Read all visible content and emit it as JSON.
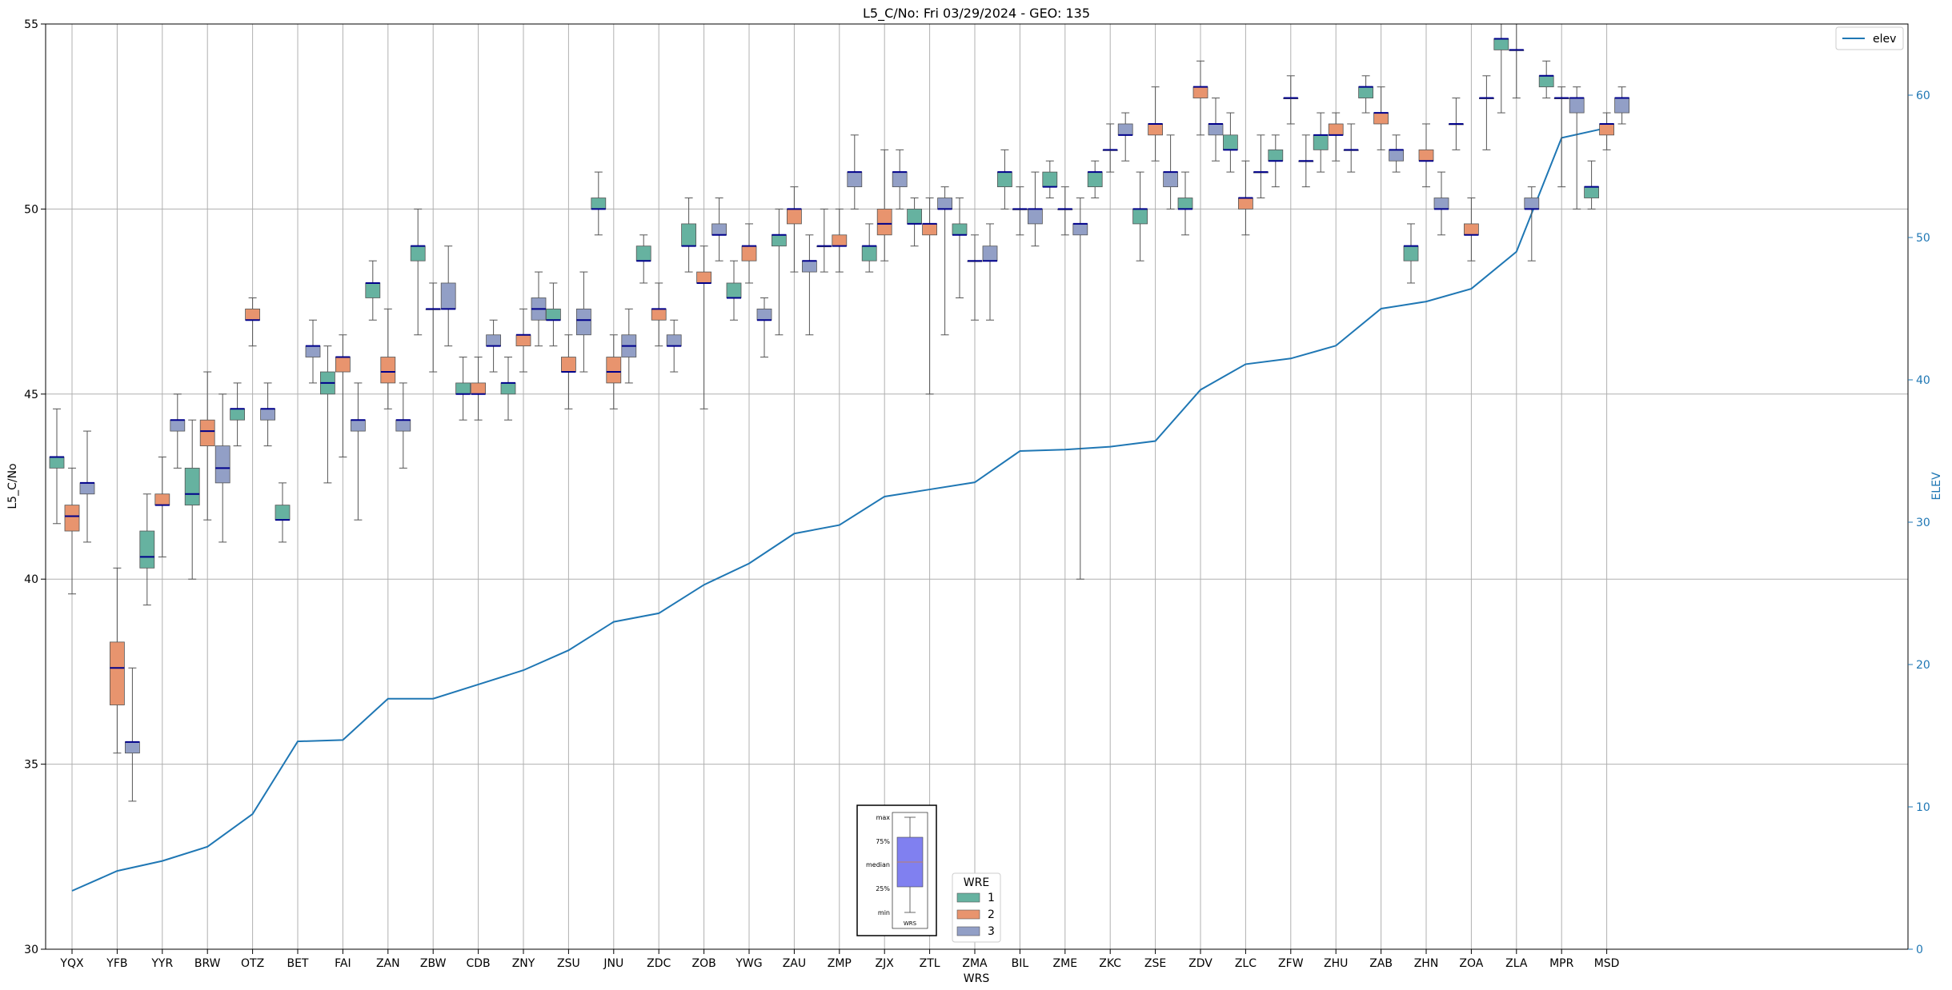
{
  "chart_data": {
    "type": "box",
    "title": "L5_C/No: Fri 03/29/2024 - GEO: 135",
    "xlabel": "WRS",
    "ylabel": "L5_C/No",
    "y2label": "ELEV",
    "ylim": [
      30,
      55
    ],
    "y2lim": [
      0,
      65
    ],
    "yticks": [
      30,
      35,
      40,
      45,
      50,
      55
    ],
    "y2ticks": [
      0,
      10,
      20,
      30,
      40,
      50,
      60
    ],
    "grid": true,
    "categories": [
      "YQX",
      "YFB",
      "YYR",
      "BRW",
      "OTZ",
      "BET",
      "FAI",
      "ZAN",
      "ZBW",
      "CDB",
      "ZNY",
      "ZSU",
      "JNU",
      "ZDC",
      "ZOB",
      "YWG",
      "ZAU",
      "ZMP",
      "ZJX",
      "ZTL",
      "ZMA",
      "BIL",
      "ZME",
      "ZKC",
      "ZSE",
      "ZDV",
      "ZLC",
      "ZFW",
      "ZHU",
      "ZAB",
      "ZHN",
      "ZOA",
      "ZLA",
      "MPR",
      "MSD"
    ],
    "line_series": {
      "name": "elev",
      "color": "#1f77b4",
      "legend_position": "top-right",
      "values": [
        4.1,
        5.5,
        6.2,
        7.2,
        9.5,
        14.6,
        14.7,
        17.6,
        17.6,
        18.6,
        19.6,
        21.0,
        23.0,
        23.6,
        25.6,
        27.1,
        29.2,
        29.8,
        31.8,
        32.3,
        32.8,
        35.0,
        35.1,
        35.3,
        35.7,
        39.3,
        41.1,
        41.5,
        42.4,
        45.0,
        45.5,
        46.4,
        49.0,
        57.0,
        57.7
      ]
    },
    "wre_legend": {
      "title": "WRE",
      "entries": [
        {
          "label": "1",
          "color": "#66b2a0"
        },
        {
          "label": "2",
          "color": "#e8946e"
        },
        {
          "label": "3",
          "color": "#929fc6"
        }
      ]
    },
    "boxes": [
      {
        "cat": "YQX",
        "wre": 1,
        "min": 41.5,
        "q1": 43.0,
        "median": 43.3,
        "q3": 43.3,
        "max": 44.6
      },
      {
        "cat": "YQX",
        "wre": 2,
        "min": 39.6,
        "q1": 41.3,
        "median": 41.7,
        "q3": 42.0,
        "max": 43.0
      },
      {
        "cat": "YQX",
        "wre": 3,
        "min": 41.0,
        "q1": 42.3,
        "median": 42.6,
        "q3": 42.6,
        "max": 44.0
      },
      {
        "cat": "YFB",
        "wre": 2,
        "min": 35.3,
        "q1": 36.6,
        "median": 37.6,
        "q3": 38.3,
        "max": 40.3
      },
      {
        "cat": "YFB",
        "wre": 3,
        "min": 34.0,
        "q1": 35.3,
        "median": 35.6,
        "q3": 35.6,
        "max": 37.6
      },
      {
        "cat": "YYR",
        "wre": 1,
        "min": 39.3,
        "q1": 40.3,
        "median": 40.6,
        "q3": 41.3,
        "max": 42.3
      },
      {
        "cat": "YYR",
        "wre": 2,
        "min": 40.6,
        "q1": 42.0,
        "median": 42.0,
        "q3": 42.3,
        "max": 43.3
      },
      {
        "cat": "YYR",
        "wre": 3,
        "min": 43.0,
        "q1": 44.0,
        "median": 44.3,
        "q3": 44.3,
        "max": 45.0
      },
      {
        "cat": "BRW",
        "wre": 1,
        "min": 40.0,
        "q1": 42.0,
        "median": 42.3,
        "q3": 43.0,
        "max": 44.3
      },
      {
        "cat": "BRW",
        "wre": 2,
        "min": 41.6,
        "q1": 43.6,
        "median": 44.0,
        "q3": 44.3,
        "max": 45.6
      },
      {
        "cat": "BRW",
        "wre": 3,
        "min": 41.0,
        "q1": 42.6,
        "median": 43.0,
        "q3": 43.6,
        "max": 45.0
      },
      {
        "cat": "OTZ",
        "wre": 1,
        "min": 43.6,
        "q1": 44.3,
        "median": 44.6,
        "q3": 44.6,
        "max": 45.3
      },
      {
        "cat": "OTZ",
        "wre": 2,
        "min": 46.3,
        "q1": 47.0,
        "median": 47.0,
        "q3": 47.3,
        "max": 47.6
      },
      {
        "cat": "OTZ",
        "wre": 3,
        "min": 43.6,
        "q1": 44.3,
        "median": 44.6,
        "q3": 44.6,
        "max": 45.3
      },
      {
        "cat": "BET",
        "wre": 1,
        "min": 41.0,
        "q1": 41.6,
        "median": 41.6,
        "q3": 42.0,
        "max": 42.6
      },
      {
        "cat": "BET",
        "wre": 3,
        "min": 45.3,
        "q1": 46.0,
        "median": 46.3,
        "q3": 46.3,
        "max": 47.0
      },
      {
        "cat": "FAI",
        "wre": 1,
        "min": 42.6,
        "q1": 45.0,
        "median": 45.3,
        "q3": 45.6,
        "max": 46.3
      },
      {
        "cat": "FAI",
        "wre": 2,
        "min": 43.3,
        "q1": 45.6,
        "median": 46.0,
        "q3": 46.0,
        "max": 46.6
      },
      {
        "cat": "FAI",
        "wre": 3,
        "min": 41.6,
        "q1": 44.0,
        "median": 44.3,
        "q3": 44.3,
        "max": 45.3
      },
      {
        "cat": "ZAN",
        "wre": 1,
        "min": 47.0,
        "q1": 47.6,
        "median": 48.0,
        "q3": 48.0,
        "max": 48.6
      },
      {
        "cat": "ZAN",
        "wre": 2,
        "min": 44.6,
        "q1": 45.3,
        "median": 45.6,
        "q3": 46.0,
        "max": 47.3
      },
      {
        "cat": "ZAN",
        "wre": 3,
        "min": 43.0,
        "q1": 44.0,
        "median": 44.3,
        "q3": 44.3,
        "max": 45.3
      },
      {
        "cat": "ZBW",
        "wre": 1,
        "min": 46.6,
        "q1": 48.6,
        "median": 49.0,
        "q3": 49.0,
        "max": 50.0
      },
      {
        "cat": "ZBW",
        "wre": 2,
        "min": 45.6,
        "q1": 47.3,
        "median": 47.3,
        "q3": 47.3,
        "max": 48.0
      },
      {
        "cat": "ZBW",
        "wre": 3,
        "min": 46.3,
        "q1": 47.3,
        "median": 47.3,
        "q3": 48.0,
        "max": 49.0
      },
      {
        "cat": "CDB",
        "wre": 1,
        "min": 44.3,
        "q1": 45.0,
        "median": 45.0,
        "q3": 45.3,
        "max": 46.0
      },
      {
        "cat": "CDB",
        "wre": 2,
        "min": 44.3,
        "q1": 45.0,
        "median": 45.0,
        "q3": 45.3,
        "max": 46.0
      },
      {
        "cat": "CDB",
        "wre": 3,
        "min": 45.6,
        "q1": 46.3,
        "median": 46.3,
        "q3": 46.6,
        "max": 47.0
      },
      {
        "cat": "ZNY",
        "wre": 1,
        "min": 44.3,
        "q1": 45.0,
        "median": 45.3,
        "q3": 45.3,
        "max": 46.0
      },
      {
        "cat": "ZNY",
        "wre": 2,
        "min": 45.6,
        "q1": 46.3,
        "median": 46.6,
        "q3": 46.6,
        "max": 47.3
      },
      {
        "cat": "ZNY",
        "wre": 3,
        "min": 46.3,
        "q1": 47.0,
        "median": 47.3,
        "q3": 47.6,
        "max": 48.3
      },
      {
        "cat": "ZSU",
        "wre": 1,
        "min": 46.3,
        "q1": 47.0,
        "median": 47.0,
        "q3": 47.3,
        "max": 48.0
      },
      {
        "cat": "ZSU",
        "wre": 2,
        "min": 44.6,
        "q1": 45.6,
        "median": 45.6,
        "q3": 46.0,
        "max": 46.6
      },
      {
        "cat": "ZSU",
        "wre": 3,
        "min": 45.6,
        "q1": 46.6,
        "median": 47.0,
        "q3": 47.3,
        "max": 48.3
      },
      {
        "cat": "JNU",
        "wre": 1,
        "min": 49.3,
        "q1": 50.0,
        "median": 50.0,
        "q3": 50.3,
        "max": 51.0
      },
      {
        "cat": "JNU",
        "wre": 2,
        "min": 44.6,
        "q1": 45.3,
        "median": 45.6,
        "q3": 46.0,
        "max": 46.6
      },
      {
        "cat": "JNU",
        "wre": 3,
        "min": 45.3,
        "q1": 46.0,
        "median": 46.3,
        "q3": 46.6,
        "max": 47.3
      },
      {
        "cat": "ZDC",
        "wre": 1,
        "min": 48.0,
        "q1": 48.6,
        "median": 48.6,
        "q3": 49.0,
        "max": 49.3
      },
      {
        "cat": "ZDC",
        "wre": 2,
        "min": 46.3,
        "q1": 47.0,
        "median": 47.3,
        "q3": 47.3,
        "max": 48.0
      },
      {
        "cat": "ZDC",
        "wre": 3,
        "min": 45.6,
        "q1": 46.3,
        "median": 46.3,
        "q3": 46.6,
        "max": 47.0
      },
      {
        "cat": "ZOB",
        "wre": 1,
        "min": 48.3,
        "q1": 49.0,
        "median": 49.0,
        "q3": 49.6,
        "max": 50.3
      },
      {
        "cat": "ZOB",
        "wre": 2,
        "min": 44.6,
        "q1": 48.0,
        "median": 48.0,
        "q3": 48.3,
        "max": 49.0
      },
      {
        "cat": "ZOB",
        "wre": 3,
        "min": 48.6,
        "q1": 49.3,
        "median": 49.3,
        "q3": 49.6,
        "max": 50.3
      },
      {
        "cat": "YWG",
        "wre": 1,
        "min": 47.0,
        "q1": 47.6,
        "median": 47.6,
        "q3": 48.0,
        "max": 48.6
      },
      {
        "cat": "YWG",
        "wre": 2,
        "min": 48.0,
        "q1": 48.6,
        "median": 49.0,
        "q3": 49.0,
        "max": 49.6
      },
      {
        "cat": "YWG",
        "wre": 3,
        "min": 46.0,
        "q1": 47.0,
        "median": 47.0,
        "q3": 47.3,
        "max": 47.6
      },
      {
        "cat": "ZAU",
        "wre": 1,
        "min": 46.6,
        "q1": 49.0,
        "median": 49.3,
        "q3": 49.3,
        "max": 50.0
      },
      {
        "cat": "ZAU",
        "wre": 2,
        "min": 48.3,
        "q1": 49.6,
        "median": 50.0,
        "q3": 50.0,
        "max": 50.6
      },
      {
        "cat": "ZAU",
        "wre": 3,
        "min": 46.6,
        "q1": 48.3,
        "median": 48.6,
        "q3": 48.6,
        "max": 49.3
      },
      {
        "cat": "ZMP",
        "wre": 1,
        "min": 48.3,
        "q1": 49.0,
        "median": 49.0,
        "q3": 49.0,
        "max": 50.0
      },
      {
        "cat": "ZMP",
        "wre": 2,
        "min": 48.3,
        "q1": 49.0,
        "median": 49.0,
        "q3": 49.3,
        "max": 50.0
      },
      {
        "cat": "ZMP",
        "wre": 3,
        "min": 50.0,
        "q1": 50.6,
        "median": 51.0,
        "q3": 51.0,
        "max": 52.0
      },
      {
        "cat": "ZJX",
        "wre": 1,
        "min": 48.3,
        "q1": 48.6,
        "median": 49.0,
        "q3": 49.0,
        "max": 49.6
      },
      {
        "cat": "ZJX",
        "wre": 2,
        "min": 48.6,
        "q1": 49.3,
        "median": 49.6,
        "q3": 50.0,
        "max": 51.6
      },
      {
        "cat": "ZJX",
        "wre": 3,
        "min": 50.0,
        "q1": 50.6,
        "median": 51.0,
        "q3": 51.0,
        "max": 51.6
      },
      {
        "cat": "ZTL",
        "wre": 1,
        "min": 49.0,
        "q1": 49.6,
        "median": 49.6,
        "q3": 50.0,
        "max": 50.3
      },
      {
        "cat": "ZTL",
        "wre": 2,
        "min": 45.0,
        "q1": 49.3,
        "median": 49.6,
        "q3": 49.6,
        "max": 50.3
      },
      {
        "cat": "ZTL",
        "wre": 3,
        "min": 46.6,
        "q1": 50.0,
        "median": 50.0,
        "q3": 50.3,
        "max": 50.6
      },
      {
        "cat": "ZMA",
        "wre": 1,
        "min": 47.6,
        "q1": 49.3,
        "median": 49.3,
        "q3": 49.6,
        "max": 50.3
      },
      {
        "cat": "ZMA",
        "wre": 2,
        "min": 47.0,
        "q1": 48.6,
        "median": 48.6,
        "q3": 48.6,
        "max": 49.3
      },
      {
        "cat": "ZMA",
        "wre": 3,
        "min": 47.0,
        "q1": 48.6,
        "median": 48.6,
        "q3": 49.0,
        "max": 49.6
      },
      {
        "cat": "BIL",
        "wre": 1,
        "min": 50.0,
        "q1": 50.6,
        "median": 51.0,
        "q3": 51.0,
        "max": 51.6
      },
      {
        "cat": "BIL",
        "wre": 2,
        "min": 49.3,
        "q1": 50.0,
        "median": 50.0,
        "q3": 50.0,
        "max": 50.6
      },
      {
        "cat": "BIL",
        "wre": 3,
        "min": 49.0,
        "q1": 49.6,
        "median": 50.0,
        "q3": 50.0,
        "max": 51.0
      },
      {
        "cat": "ZME",
        "wre": 1,
        "min": 50.3,
        "q1": 50.6,
        "median": 50.6,
        "q3": 51.0,
        "max": 51.3
      },
      {
        "cat": "ZME",
        "wre": 2,
        "min": 49.3,
        "q1": 50.0,
        "median": 50.0,
        "q3": 50.0,
        "max": 50.6
      },
      {
        "cat": "ZME",
        "wre": 3,
        "min": 40.0,
        "q1": 49.3,
        "median": 49.6,
        "q3": 49.6,
        "max": 50.3
      },
      {
        "cat": "ZKC",
        "wre": 1,
        "min": 50.3,
        "q1": 50.6,
        "median": 51.0,
        "q3": 51.0,
        "max": 51.3
      },
      {
        "cat": "ZKC",
        "wre": 2,
        "min": 51.0,
        "q1": 51.6,
        "median": 51.6,
        "q3": 51.6,
        "max": 52.3
      },
      {
        "cat": "ZKC",
        "wre": 3,
        "min": 51.3,
        "q1": 52.0,
        "median": 52.0,
        "q3": 52.3,
        "max": 52.6
      },
      {
        "cat": "ZSE",
        "wre": 1,
        "min": 48.6,
        "q1": 49.6,
        "median": 50.0,
        "q3": 50.0,
        "max": 51.0
      },
      {
        "cat": "ZSE",
        "wre": 2,
        "min": 51.3,
        "q1": 52.0,
        "median": 52.3,
        "q3": 52.3,
        "max": 53.3
      },
      {
        "cat": "ZSE",
        "wre": 3,
        "min": 50.0,
        "q1": 50.6,
        "median": 51.0,
        "q3": 51.0,
        "max": 52.0
      },
      {
        "cat": "ZDV",
        "wre": 1,
        "min": 49.3,
        "q1": 50.0,
        "median": 50.0,
        "q3": 50.3,
        "max": 51.0
      },
      {
        "cat": "ZDV",
        "wre": 2,
        "min": 52.0,
        "q1": 53.0,
        "median": 53.3,
        "q3": 53.3,
        "max": 54.0
      },
      {
        "cat": "ZDV",
        "wre": 3,
        "min": 51.3,
        "q1": 52.0,
        "median": 52.3,
        "q3": 52.3,
        "max": 53.0
      },
      {
        "cat": "ZLC",
        "wre": 1,
        "min": 51.0,
        "q1": 51.6,
        "median": 51.6,
        "q3": 52.0,
        "max": 52.6
      },
      {
        "cat": "ZLC",
        "wre": 2,
        "min": 49.3,
        "q1": 50.0,
        "median": 50.3,
        "q3": 50.3,
        "max": 51.3
      },
      {
        "cat": "ZLC",
        "wre": 3,
        "min": 50.3,
        "q1": 51.0,
        "median": 51.0,
        "q3": 51.0,
        "max": 52.0
      },
      {
        "cat": "ZFW",
        "wre": 1,
        "min": 50.6,
        "q1": 51.3,
        "median": 51.3,
        "q3": 51.6,
        "max": 52.0
      },
      {
        "cat": "ZFW",
        "wre": 2,
        "min": 52.3,
        "q1": 53.0,
        "median": 53.0,
        "q3": 53.0,
        "max": 53.6
      },
      {
        "cat": "ZFW",
        "wre": 3,
        "min": 50.6,
        "q1": 51.3,
        "median": 51.3,
        "q3": 51.3,
        "max": 52.0
      },
      {
        "cat": "ZHU",
        "wre": 1,
        "min": 51.0,
        "q1": 51.6,
        "median": 52.0,
        "q3": 52.0,
        "max": 52.6
      },
      {
        "cat": "ZHU",
        "wre": 2,
        "min": 51.3,
        "q1": 52.0,
        "median": 52.0,
        "q3": 52.3,
        "max": 52.6
      },
      {
        "cat": "ZHU",
        "wre": 3,
        "min": 51.0,
        "q1": 51.6,
        "median": 51.6,
        "q3": 51.6,
        "max": 52.3
      },
      {
        "cat": "ZAB",
        "wre": 1,
        "min": 52.6,
        "q1": 53.0,
        "median": 53.3,
        "q3": 53.3,
        "max": 53.6
      },
      {
        "cat": "ZAB",
        "wre": 2,
        "min": 51.6,
        "q1": 52.3,
        "median": 52.6,
        "q3": 52.6,
        "max": 53.3
      },
      {
        "cat": "ZAB",
        "wre": 3,
        "min": 51.0,
        "q1": 51.3,
        "median": 51.6,
        "q3": 51.6,
        "max": 52.0
      },
      {
        "cat": "ZHN",
        "wre": 1,
        "min": 48.0,
        "q1": 48.6,
        "median": 49.0,
        "q3": 49.0,
        "max": 49.6
      },
      {
        "cat": "ZHN",
        "wre": 2,
        "min": 50.6,
        "q1": 51.3,
        "median": 51.3,
        "q3": 51.6,
        "max": 52.3
      },
      {
        "cat": "ZHN",
        "wre": 3,
        "min": 49.3,
        "q1": 50.0,
        "median": 50.0,
        "q3": 50.3,
        "max": 51.0
      },
      {
        "cat": "ZOA",
        "wre": 1,
        "min": 51.6,
        "q1": 52.3,
        "median": 52.3,
        "q3": 52.3,
        "max": 53.0
      },
      {
        "cat": "ZOA",
        "wre": 2,
        "min": 48.6,
        "q1": 49.3,
        "median": 49.3,
        "q3": 49.6,
        "max": 50.3
      },
      {
        "cat": "ZOA",
        "wre": 3,
        "min": 51.6,
        "q1": 53.0,
        "median": 53.0,
        "q3": 53.0,
        "max": 53.6
      },
      {
        "cat": "ZLA",
        "wre": 1,
        "min": 52.6,
        "q1": 54.3,
        "median": 54.6,
        "q3": 54.6,
        "max": 55.0
      },
      {
        "cat": "ZLA",
        "wre": 2,
        "min": 53.0,
        "q1": 54.3,
        "median": 54.3,
        "q3": 54.3,
        "max": 55.0
      },
      {
        "cat": "ZLA",
        "wre": 3,
        "min": 48.6,
        "q1": 50.0,
        "median": 50.0,
        "q3": 50.3,
        "max": 50.6
      },
      {
        "cat": "MPR",
        "wre": 1,
        "min": 53.0,
        "q1": 53.3,
        "median": 53.6,
        "q3": 53.6,
        "max": 54.0
      },
      {
        "cat": "MPR",
        "wre": 2,
        "min": 50.6,
        "q1": 53.0,
        "median": 53.0,
        "q3": 53.0,
        "max": 53.3
      },
      {
        "cat": "MPR",
        "wre": 3,
        "min": 50.0,
        "q1": 52.6,
        "median": 53.0,
        "q3": 53.0,
        "max": 53.3
      },
      {
        "cat": "MSD",
        "wre": 1,
        "min": 50.0,
        "q1": 50.3,
        "median": 50.6,
        "q3": 50.6,
        "max": 51.3
      },
      {
        "cat": "MSD",
        "wre": 2,
        "min": 51.6,
        "q1": 52.0,
        "median": 52.3,
        "q3": 52.3,
        "max": 52.6
      },
      {
        "cat": "MSD",
        "wre": 3,
        "min": 52.3,
        "q1": 52.6,
        "median": 53.0,
        "q3": 53.0,
        "max": 53.3
      }
    ],
    "box_key": {
      "labels": [
        "max",
        "75%",
        "median",
        "25%",
        "min"
      ],
      "xlabel": "WRS"
    }
  }
}
